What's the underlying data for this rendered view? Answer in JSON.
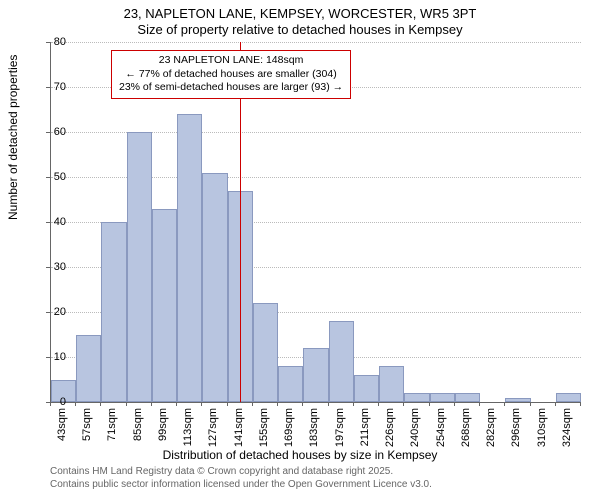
{
  "title_main": "23, NAPLETON LANE, KEMPSEY, WORCESTER, WR5 3PT",
  "title_sub": "Size of property relative to detached houses in Kempsey",
  "y_axis_label": "Number of detached properties",
  "x_axis_label": "Distribution of detached houses by size in Kempsey",
  "footer_line1": "Contains HM Land Registry data © Crown copyright and database right 2025.",
  "footer_line2": "Contains public sector information licensed under the Open Government Licence v3.0.",
  "chart": {
    "type": "histogram",
    "ylim": [
      0,
      80
    ],
    "ytick_step": 10,
    "bar_fill": "#b8c5e0",
    "bar_border": "#8a99bf",
    "grid_color": "#bbbbbb",
    "axis_color": "#666666",
    "ref_line_color": "#cc0000",
    "ref_line_value": 148,
    "x_categories": [
      "43sqm",
      "57sqm",
      "71sqm",
      "85sqm",
      "99sqm",
      "113sqm",
      "127sqm",
      "141sqm",
      "155sqm",
      "169sqm",
      "183sqm",
      "197sqm",
      "211sqm",
      "226sqm",
      "240sqm",
      "254sqm",
      "268sqm",
      "282sqm",
      "296sqm",
      "310sqm",
      "324sqm"
    ],
    "values": [
      5,
      15,
      40,
      60,
      43,
      64,
      51,
      47,
      22,
      8,
      12,
      18,
      6,
      8,
      2,
      2,
      2,
      0,
      1,
      0,
      2
    ],
    "bar_width_ratio": 1.0
  },
  "annotation": {
    "line1": "23 NAPLETON LANE: 148sqm",
    "line2": "← 77% of detached houses are smaller (304)",
    "line3": "23% of semi-detached houses are larger (93) →",
    "border_color": "#cc0000",
    "bg_color": "#ffffff",
    "fontsize": 10.5
  }
}
